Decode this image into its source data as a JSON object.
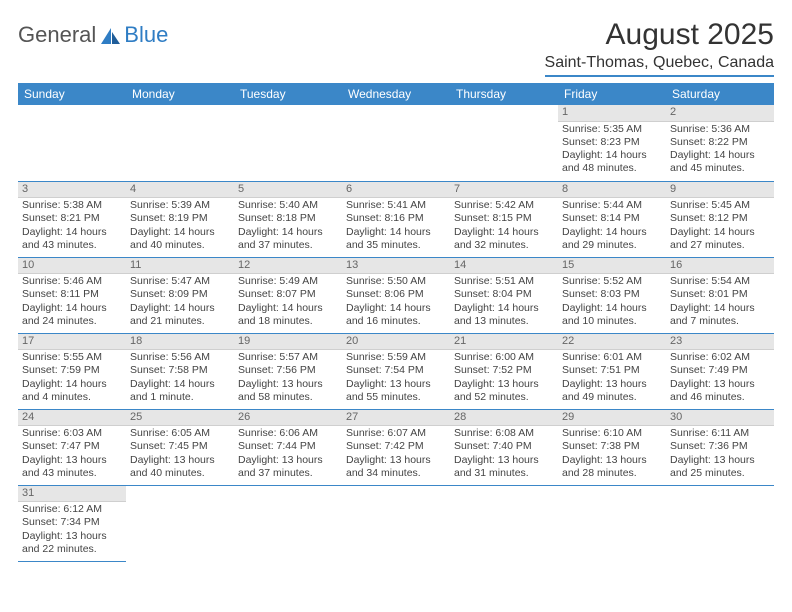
{
  "logo": {
    "part1": "General",
    "part2": "Blue"
  },
  "title": "August 2025",
  "location": "Saint-Thomas, Quebec, Canada",
  "colors": {
    "header_bg": "#3b87c8",
    "header_text": "#ffffff",
    "daynum_bg": "#e6e6e6",
    "border": "#3b87c8",
    "logo_blue": "#2f7dc4"
  },
  "weekdays": [
    "Sunday",
    "Monday",
    "Tuesday",
    "Wednesday",
    "Thursday",
    "Friday",
    "Saturday"
  ],
  "weeks": [
    [
      null,
      null,
      null,
      null,
      null,
      {
        "n": "1",
        "sr": "5:35 AM",
        "ss": "8:23 PM",
        "dl": "14 hours and 48 minutes."
      },
      {
        "n": "2",
        "sr": "5:36 AM",
        "ss": "8:22 PM",
        "dl": "14 hours and 45 minutes."
      }
    ],
    [
      {
        "n": "3",
        "sr": "5:38 AM",
        "ss": "8:21 PM",
        "dl": "14 hours and 43 minutes."
      },
      {
        "n": "4",
        "sr": "5:39 AM",
        "ss": "8:19 PM",
        "dl": "14 hours and 40 minutes."
      },
      {
        "n": "5",
        "sr": "5:40 AM",
        "ss": "8:18 PM",
        "dl": "14 hours and 37 minutes."
      },
      {
        "n": "6",
        "sr": "5:41 AM",
        "ss": "8:16 PM",
        "dl": "14 hours and 35 minutes."
      },
      {
        "n": "7",
        "sr": "5:42 AM",
        "ss": "8:15 PM",
        "dl": "14 hours and 32 minutes."
      },
      {
        "n": "8",
        "sr": "5:44 AM",
        "ss": "8:14 PM",
        "dl": "14 hours and 29 minutes."
      },
      {
        "n": "9",
        "sr": "5:45 AM",
        "ss": "8:12 PM",
        "dl": "14 hours and 27 minutes."
      }
    ],
    [
      {
        "n": "10",
        "sr": "5:46 AM",
        "ss": "8:11 PM",
        "dl": "14 hours and 24 minutes."
      },
      {
        "n": "11",
        "sr": "5:47 AM",
        "ss": "8:09 PM",
        "dl": "14 hours and 21 minutes."
      },
      {
        "n": "12",
        "sr": "5:49 AM",
        "ss": "8:07 PM",
        "dl": "14 hours and 18 minutes."
      },
      {
        "n": "13",
        "sr": "5:50 AM",
        "ss": "8:06 PM",
        "dl": "14 hours and 16 minutes."
      },
      {
        "n": "14",
        "sr": "5:51 AM",
        "ss": "8:04 PM",
        "dl": "14 hours and 13 minutes."
      },
      {
        "n": "15",
        "sr": "5:52 AM",
        "ss": "8:03 PM",
        "dl": "14 hours and 10 minutes."
      },
      {
        "n": "16",
        "sr": "5:54 AM",
        "ss": "8:01 PM",
        "dl": "14 hours and 7 minutes."
      }
    ],
    [
      {
        "n": "17",
        "sr": "5:55 AM",
        "ss": "7:59 PM",
        "dl": "14 hours and 4 minutes."
      },
      {
        "n": "18",
        "sr": "5:56 AM",
        "ss": "7:58 PM",
        "dl": "14 hours and 1 minute."
      },
      {
        "n": "19",
        "sr": "5:57 AM",
        "ss": "7:56 PM",
        "dl": "13 hours and 58 minutes."
      },
      {
        "n": "20",
        "sr": "5:59 AM",
        "ss": "7:54 PM",
        "dl": "13 hours and 55 minutes."
      },
      {
        "n": "21",
        "sr": "6:00 AM",
        "ss": "7:52 PM",
        "dl": "13 hours and 52 minutes."
      },
      {
        "n": "22",
        "sr": "6:01 AM",
        "ss": "7:51 PM",
        "dl": "13 hours and 49 minutes."
      },
      {
        "n": "23",
        "sr": "6:02 AM",
        "ss": "7:49 PM",
        "dl": "13 hours and 46 minutes."
      }
    ],
    [
      {
        "n": "24",
        "sr": "6:03 AM",
        "ss": "7:47 PM",
        "dl": "13 hours and 43 minutes."
      },
      {
        "n": "25",
        "sr": "6:05 AM",
        "ss": "7:45 PM",
        "dl": "13 hours and 40 minutes."
      },
      {
        "n": "26",
        "sr": "6:06 AM",
        "ss": "7:44 PM",
        "dl": "13 hours and 37 minutes."
      },
      {
        "n": "27",
        "sr": "6:07 AM",
        "ss": "7:42 PM",
        "dl": "13 hours and 34 minutes."
      },
      {
        "n": "28",
        "sr": "6:08 AM",
        "ss": "7:40 PM",
        "dl": "13 hours and 31 minutes."
      },
      {
        "n": "29",
        "sr": "6:10 AM",
        "ss": "7:38 PM",
        "dl": "13 hours and 28 minutes."
      },
      {
        "n": "30",
        "sr": "6:11 AM",
        "ss": "7:36 PM",
        "dl": "13 hours and 25 minutes."
      }
    ],
    [
      {
        "n": "31",
        "sr": "6:12 AM",
        "ss": "7:34 PM",
        "dl": "13 hours and 22 minutes."
      },
      null,
      null,
      null,
      null,
      null,
      null
    ]
  ],
  "labels": {
    "sunrise": "Sunrise: ",
    "sunset": "Sunset: ",
    "daylight": "Daylight: "
  }
}
